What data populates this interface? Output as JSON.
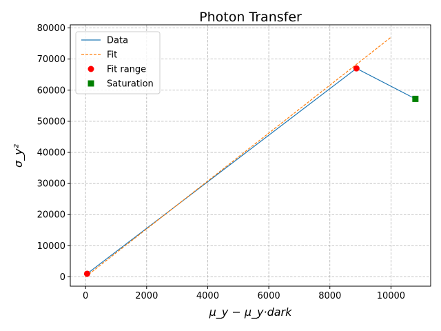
{
  "chart_data": {
    "type": "line",
    "title": "Photon Transfer",
    "xlabel": "μ_y − μ_y·dark",
    "ylabel": "σ_y²",
    "xlim": [
      -500,
      11300
    ],
    "ylim": [
      -3000,
      81000
    ],
    "xticks": [
      0,
      2000,
      4000,
      6000,
      8000,
      10000
    ],
    "yticks": [
      0,
      10000,
      20000,
      30000,
      40000,
      50000,
      60000,
      70000,
      80000
    ],
    "grid": true,
    "grid_style": "dashed",
    "legend_position": "top-left",
    "series": [
      {
        "name": "Data",
        "kind": "line",
        "color": "#1f77b4",
        "points": [
          [
            50,
            1000
          ],
          [
            8870,
            67000
          ],
          [
            10800,
            57200
          ]
        ]
      },
      {
        "name": "Fit",
        "kind": "dashed-line",
        "color": "#ff7f0e",
        "points": [
          [
            0,
            0
          ],
          [
            10000,
            77000
          ]
        ]
      },
      {
        "name": "Fit range",
        "kind": "scatter-circle",
        "color": "#ff0000",
        "points": [
          [
            50,
            1000
          ],
          [
            8870,
            67000
          ]
        ]
      },
      {
        "name": "Saturation",
        "kind": "scatter-square",
        "color": "#008000",
        "points": [
          [
            10800,
            57200
          ]
        ]
      }
    ]
  }
}
